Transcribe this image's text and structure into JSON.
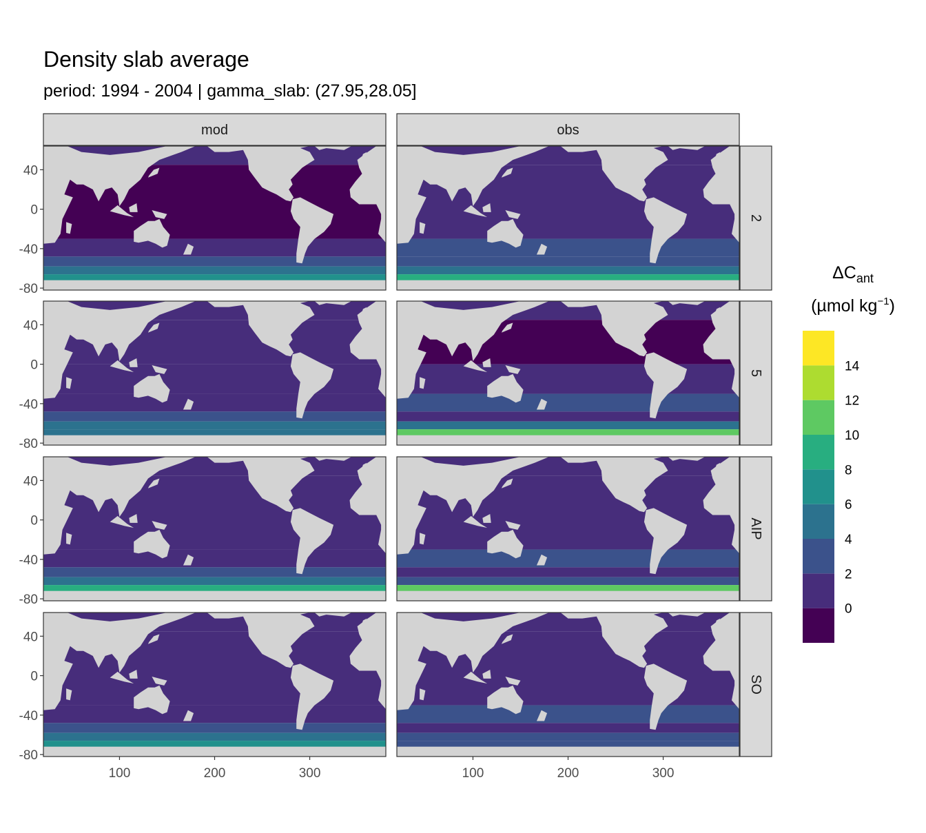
{
  "title": "Density slab average",
  "subtitle": "period: 1994 - 2004 | gamma_slab: (27.95,28.05]",
  "chart_data": {
    "type": "heatmap",
    "facets": {
      "columns": [
        "mod",
        "obs"
      ],
      "rows": [
        "2",
        "5",
        "AIP",
        "SO"
      ]
    },
    "x_axis": {
      "ticks": [
        100,
        200,
        300
      ],
      "range": [
        20,
        380
      ]
    },
    "y_axis": {
      "ticks": [
        40,
        0,
        -40,
        -80
      ],
      "range": [
        -82,
        64
      ]
    },
    "legend": {
      "title_main": "ΔC",
      "title_sub": "ant",
      "units_prefix": "(µmol kg",
      "units_sup": "−1",
      "units_suffix": ")",
      "breaks": [
        -2,
        0,
        2,
        4,
        6,
        8,
        10,
        12,
        14,
        16
      ],
      "labels": [
        "0",
        "2",
        "4",
        "6",
        "8",
        "10",
        "12",
        "14"
      ],
      "colors": [
        "#440154",
        "#472D7B",
        "#3B528B",
        "#2C728E",
        "#21918C",
        "#28AE80",
        "#5EC962",
        "#ADDC30",
        "#FDE725"
      ],
      "placement": "right"
    },
    "panels": [
      {
        "col": "mod",
        "row": "2",
        "zonal_bands": [
          [
            64,
            45,
            1
          ],
          [
            45,
            -30,
            0
          ],
          [
            -30,
            -48,
            1
          ],
          [
            -48,
            -58,
            2
          ],
          [
            -58,
            -66,
            3
          ],
          [
            -66,
            -78,
            4
          ]
        ]
      },
      {
        "col": "obs",
        "row": "2",
        "zonal_bands": [
          [
            64,
            45,
            1
          ],
          [
            45,
            -30,
            1
          ],
          [
            -30,
            -48,
            2
          ],
          [
            -48,
            -58,
            2
          ],
          [
            -58,
            -66,
            3
          ],
          [
            -66,
            -78,
            5
          ]
        ]
      },
      {
        "col": "mod",
        "row": "5",
        "zonal_bands": [
          [
            64,
            45,
            1
          ],
          [
            45,
            0,
            1
          ],
          [
            0,
            -30,
            1
          ],
          [
            -30,
            -48,
            1
          ],
          [
            -48,
            -58,
            2
          ],
          [
            -58,
            -66,
            3
          ],
          [
            -66,
            -78,
            3
          ]
        ]
      },
      {
        "col": "obs",
        "row": "5",
        "zonal_bands": [
          [
            64,
            45,
            1
          ],
          [
            45,
            0,
            0
          ],
          [
            0,
            -30,
            1
          ],
          [
            -30,
            -48,
            2
          ],
          [
            -48,
            -58,
            1
          ],
          [
            -58,
            -66,
            3
          ],
          [
            -66,
            -78,
            6
          ]
        ]
      },
      {
        "col": "mod",
        "row": "AIP",
        "zonal_bands": [
          [
            64,
            45,
            1
          ],
          [
            45,
            -30,
            1
          ],
          [
            -30,
            -48,
            1
          ],
          [
            -48,
            -58,
            2
          ],
          [
            -58,
            -66,
            3
          ],
          [
            -66,
            -78,
            5
          ]
        ]
      },
      {
        "col": "obs",
        "row": "AIP",
        "zonal_bands": [
          [
            64,
            45,
            1
          ],
          [
            45,
            -30,
            1
          ],
          [
            -30,
            -48,
            2
          ],
          [
            -48,
            -58,
            1
          ],
          [
            -58,
            -66,
            2
          ],
          [
            -66,
            -78,
            6
          ]
        ]
      },
      {
        "col": "mod",
        "row": "SO",
        "zonal_bands": [
          [
            64,
            45,
            1
          ],
          [
            45,
            -30,
            1
          ],
          [
            -30,
            -48,
            1
          ],
          [
            -48,
            -58,
            2
          ],
          [
            -58,
            -66,
            3
          ],
          [
            -66,
            -78,
            4
          ]
        ]
      },
      {
        "col": "obs",
        "row": "SO",
        "zonal_bands": [
          [
            64,
            45,
            1
          ],
          [
            45,
            -30,
            1
          ],
          [
            -30,
            -48,
            2
          ],
          [
            -48,
            -58,
            1
          ],
          [
            -58,
            -66,
            2
          ],
          [
            -66,
            -78,
            2
          ]
        ]
      }
    ]
  }
}
